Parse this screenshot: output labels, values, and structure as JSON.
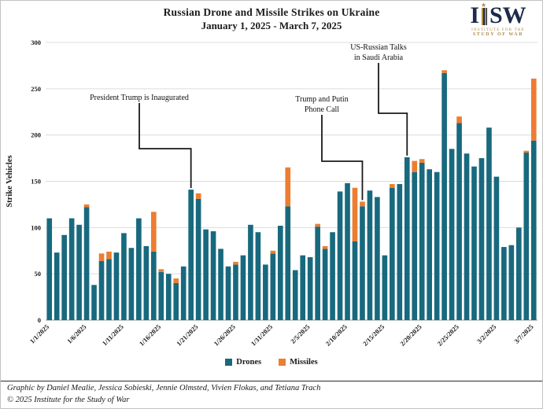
{
  "header": {
    "title": "Russian Drone and Missile Strikes on Ukraine",
    "subtitle": "January 1, 2025 - March 7, 2025"
  },
  "logo": {
    "letter_i": "I",
    "letters_sw": "SW",
    "line1": "INSTITUTE FOR THE",
    "line2": "STUDY OF WAR"
  },
  "chart_data": {
    "type": "bar",
    "stacked": true,
    "title": "Russian Drone and Missile Strikes on Ukraine",
    "subtitle": "January 1, 2025 - March 7, 2025",
    "xlabel": "",
    "ylabel": "Strike Vehicles",
    "ylim": [
      0,
      300
    ],
    "y_ticks": [
      0,
      50,
      100,
      150,
      200,
      250,
      300
    ],
    "x_tick_every": 5,
    "grid": true,
    "legend_position": "bottom",
    "categories": [
      "1/1/2025",
      "1/2/2025",
      "1/3/2025",
      "1/4/2025",
      "1/5/2025",
      "1/6/2025",
      "1/7/2025",
      "1/8/2025",
      "1/9/2025",
      "1/10/2025",
      "1/11/2025",
      "1/12/2025",
      "1/13/2025",
      "1/14/2025",
      "1/15/2025",
      "1/16/2025",
      "1/17/2025",
      "1/18/2025",
      "1/19/2025",
      "1/20/2025",
      "1/21/2025",
      "1/22/2025",
      "1/23/2025",
      "1/24/2025",
      "1/25/2025",
      "1/26/2025",
      "1/27/2025",
      "1/28/2025",
      "1/29/2025",
      "1/30/2025",
      "1/31/2025",
      "2/1/2025",
      "2/2/2025",
      "2/3/2025",
      "2/4/2025",
      "2/5/2025",
      "2/6/2025",
      "2/7/2025",
      "2/8/2025",
      "2/9/2025",
      "2/10/2025",
      "2/11/2025",
      "2/12/2025",
      "2/13/2025",
      "2/14/2025",
      "2/15/2025",
      "2/16/2025",
      "2/17/2025",
      "2/18/2025",
      "2/19/2025",
      "2/20/2025",
      "2/21/2025",
      "2/22/2025",
      "2/23/2025",
      "2/24/2025",
      "2/25/2025",
      "2/26/2025",
      "2/27/2025",
      "2/28/2025",
      "3/1/2025",
      "3/2/2025",
      "3/3/2025",
      "3/4/2025",
      "3/5/2025",
      "3/6/2025",
      "3/7/2025"
    ],
    "series": [
      {
        "name": "Drones",
        "color": "#18697e",
        "values": [
          110,
          73,
          92,
          110,
          103,
          122,
          38,
          64,
          66,
          73,
          94,
          78,
          110,
          80,
          74,
          52,
          50,
          40,
          58,
          141,
          131,
          98,
          96,
          77,
          58,
          60,
          70,
          103,
          95,
          60,
          72,
          102,
          123,
          54,
          70,
          68,
          101,
          77,
          95,
          139,
          148,
          85,
          123,
          140,
          133,
          70,
          143,
          147,
          176,
          160,
          170,
          163,
          160,
          267,
          185,
          213,
          180,
          166,
          175,
          208,
          155,
          79,
          81,
          100,
          181,
          194
        ]
      },
      {
        "name": "Missiles",
        "color": "#ed7d31",
        "values": [
          0,
          0,
          0,
          0,
          0,
          3,
          0,
          8,
          8,
          0,
          0,
          0,
          0,
          0,
          43,
          3,
          0,
          5,
          0,
          0,
          6,
          0,
          0,
          0,
          0,
          3,
          0,
          0,
          0,
          0,
          3,
          0,
          42,
          0,
          0,
          0,
          3,
          3,
          0,
          0,
          0,
          58,
          5,
          0,
          0,
          0,
          4,
          0,
          0,
          12,
          4,
          0,
          0,
          3,
          0,
          7,
          0,
          0,
          0,
          0,
          0,
          0,
          0,
          0,
          2,
          67
        ]
      }
    ],
    "annotations": [
      {
        "text": [
          "President Trump is Inaugurated"
        ],
        "target": "1/20/2025"
      },
      {
        "text": [
          "Trump and Putin",
          "Phone Call"
        ],
        "target": "2/12/2025"
      },
      {
        "text": [
          "US-Russian Talks",
          "in Saudi Arabia"
        ],
        "target": "2/18/2025"
      }
    ]
  },
  "footer": {
    "credit": "Graphic by Daniel Mealie, Jessica Sobieski, Jennie Olmsted, Vivien Flokas, and Tetiana Trach",
    "copyright": "© 2025 Institute for the Study of War"
  }
}
